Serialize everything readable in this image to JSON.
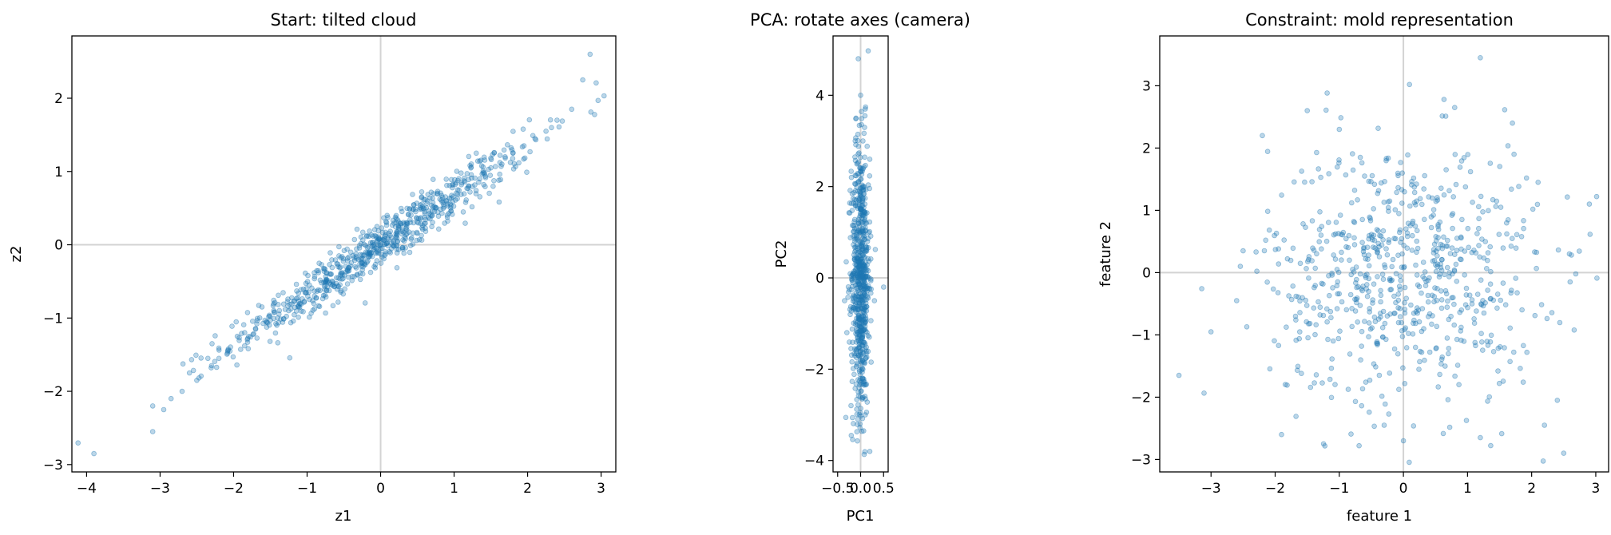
{
  "figure": {
    "background": "#ffffff"
  },
  "chart_data": [
    {
      "type": "scatter",
      "title": "Start: tilted cloud",
      "xlabel": "z1",
      "ylabel": "z2",
      "xlim": [
        -4.2,
        3.2
      ],
      "ylim": [
        -3.1,
        2.85
      ],
      "xticks": [
        -4,
        -3,
        -2,
        -1,
        0,
        1,
        2,
        3
      ],
      "yticks": [
        -3,
        -2,
        -1,
        0,
        1,
        2
      ],
      "reference_lines": {
        "x": 0,
        "y": 0
      },
      "grid": false,
      "color": "#1f77b4",
      "point_count": 700,
      "pattern": "strongly correlated cloud along y ≈ 0.68·x (e.g. (-3.9,-2.85) to (2.85,2.6))",
      "series": [
        {
          "x": [
            -3.9,
            -3.1,
            -3.1,
            -2.95,
            -2.85,
            -2.7,
            -2.6,
            -2.5,
            -2.35,
            -2.3,
            -2.2,
            -2.05,
            -1.95,
            -1.85,
            -1.7,
            -1.55,
            -1.4,
            -1.25,
            -1.1,
            -0.9,
            -0.75,
            -0.6,
            -0.45,
            -0.3,
            -0.15,
            0.0,
            0.15,
            0.3,
            0.45,
            0.6,
            0.75,
            0.9,
            1.05,
            1.2,
            1.35,
            1.5,
            1.65,
            1.8,
            1.95,
            2.1,
            2.25,
            2.4,
            2.6,
            2.75,
            2.85
          ],
          "y": [
            -2.85,
            -2.2,
            -2.55,
            -2.25,
            -2.1,
            -2.0,
            -1.75,
            -1.85,
            -1.55,
            -1.65,
            -1.55,
            -1.45,
            -1.25,
            -1.2,
            -1.15,
            -1.05,
            -1.0,
            -0.9,
            -0.8,
            -0.7,
            -0.55,
            -0.45,
            -0.35,
            -0.2,
            -0.1,
            0.0,
            0.1,
            0.2,
            0.3,
            0.45,
            0.5,
            0.6,
            0.75,
            0.8,
            0.9,
            1.05,
            1.1,
            1.25,
            1.35,
            1.45,
            1.55,
            1.7,
            1.85,
            2.25,
            2.6
          ]
        }
      ]
    },
    {
      "type": "scatter",
      "title": "PCA: rotate axes (camera)",
      "xlabel": "PC1",
      "ylabel": "PC2",
      "xlim": [
        -0.6,
        0.6
      ],
      "ylim": [
        -4.25,
        5.3
      ],
      "xticks": [
        -0.5,
        0.0,
        0.5
      ],
      "xticklabels": [
        "−0.5",
        "0.0",
        "0.5"
      ],
      "yticks": [
        -4,
        -2,
        0,
        2,
        4
      ],
      "reference_lines": {
        "x": 0,
        "y": 0
      },
      "grid": false,
      "color": "#1f77b4",
      "point_count": 700,
      "pattern": "narrow vertical band, PC1 within about ±0.35, PC2 roughly -3.8 to 4.8",
      "series": [
        {
          "x": [
            -0.05,
            0.0,
            0.1,
            -0.1,
            0.05,
            0.2,
            -0.2,
            0.0,
            0.15,
            -0.15,
            0.3,
            -0.3,
            0.05,
            -0.05,
            0.1,
            0.5,
            -0.35,
            0.2
          ],
          "y": [
            4.8,
            4.0,
            3.7,
            3.5,
            3.0,
            2.6,
            2.2,
            1.5,
            0.8,
            0.0,
            -0.5,
            -1.2,
            -2.0,
            -2.5,
            -3.0,
            -0.2,
            -0.5,
            -3.8
          ]
        }
      ]
    },
    {
      "type": "scatter",
      "title": "Constraint: mold representation",
      "xlabel": "feature 1",
      "ylabel": "feature 2",
      "xlim": [
        -3.8,
        3.2
      ],
      "ylim": [
        -3.2,
        3.8
      ],
      "xticks": [
        -3,
        -2,
        -1,
        0,
        1,
        2,
        3
      ],
      "yticks": [
        -3,
        -2,
        -1,
        0,
        1,
        2,
        3
      ],
      "reference_lines": {
        "x": 0,
        "y": 0
      },
      "grid": false,
      "color": "#1f77b4",
      "point_count": 700,
      "pattern": "isotropic round cloud centred at the origin (spherical / whitened)",
      "series": [
        {
          "x": [
            -3.5,
            -3.0,
            -2.6,
            -2.5,
            -2.2,
            -1.9,
            -1.5,
            -1.0,
            1.2,
            1.7,
            2.2,
            2.5,
            2.9,
            2.6,
            2.4,
            2.1,
            0.0,
            1.2,
            -0.3,
            0.8
          ],
          "y": [
            -1.65,
            -0.95,
            -0.45,
            0.35,
            2.2,
            -2.6,
            2.6,
            2.3,
            3.45,
            2.4,
            -2.45,
            -2.9,
            1.1,
            -0.15,
            -2.05,
            1.45,
            -2.7,
            -2.65,
            -2.45,
            2.65
          ]
        }
      ]
    }
  ]
}
